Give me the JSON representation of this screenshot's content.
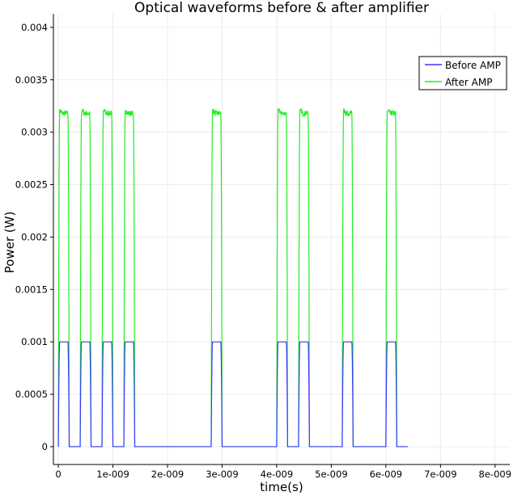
{
  "chart_data": {
    "type": "line",
    "title": "Optical waveforms before & after amplifier",
    "xlabel": "time(s)",
    "ylabel": "Power (W)",
    "xlim": [
      -9e-11,
      8.27e-09
    ],
    "ylim": [
      -0.00017,
      0.00413
    ],
    "x_ticks": [
      0,
      1e-09,
      2e-09,
      3e-09,
      4e-09,
      5e-09,
      6e-09,
      7e-09,
      8e-09
    ],
    "x_tick_labels": [
      "0",
      "1e-009",
      "2e-009",
      "3e-009",
      "4e-009",
      "5e-009",
      "6e-009",
      "7e-009",
      "8e-009"
    ],
    "y_ticks": [
      0,
      0.0005,
      0.001,
      0.0015,
      0.002,
      0.0025,
      0.003,
      0.0035,
      0.004
    ],
    "y_tick_labels": [
      "0",
      "0.0005",
      "0.001",
      "0.0015",
      "0.002",
      "0.0025",
      "0.003",
      "0.0035",
      "0.004"
    ],
    "grid": true,
    "legend_position": "top-right",
    "bit_period_s": 2e-10,
    "bits": [
      1,
      0,
      1,
      0,
      1,
      0,
      1,
      0,
      0,
      0,
      0,
      0,
      0,
      0,
      1,
      0,
      0,
      0,
      0,
      0,
      1,
      0,
      1,
      0,
      0,
      0,
      1,
      0,
      0,
      0,
      1,
      0
    ],
    "series": [
      {
        "name": "Before AMP",
        "color": "#3a3aff",
        "high_level": 0.001,
        "low_level": 0
      },
      {
        "name": "After AMP",
        "color": "#22ee22",
        "high_level": 0.00318,
        "low_level": 0
      }
    ]
  }
}
